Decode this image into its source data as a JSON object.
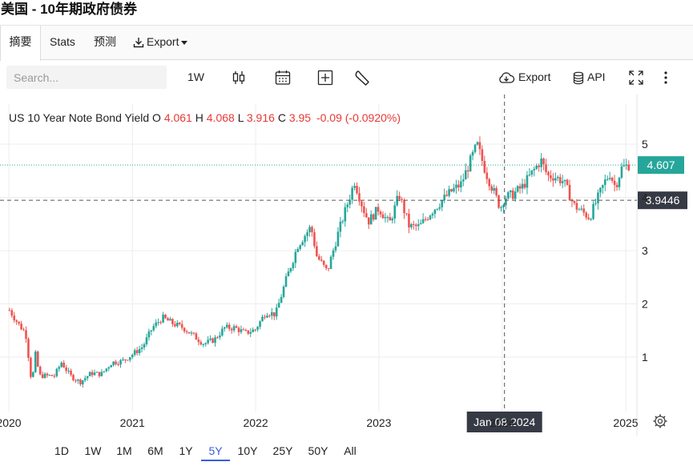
{
  "page": {
    "title": "美国 - 10年期政府债券"
  },
  "tabs": [
    {
      "label": "摘要",
      "active": true
    },
    {
      "label": "Stats"
    },
    {
      "label": "预测"
    },
    {
      "label": "Export",
      "icon": "download-icon",
      "has_dropdown": true
    }
  ],
  "toolbar": {
    "search_placeholder": "Search...",
    "interval": "1W",
    "export_label": "Export",
    "api_label": "API",
    "icons": [
      "candlestick-icon",
      "calendar-icon",
      "plus-box-icon",
      "wrench-icon",
      "cloud-download-icon",
      "database-icon",
      "fullscreen-icon",
      "more-vertical-icon"
    ]
  },
  "legend": {
    "name": "US 10 Year Note Bond Yield",
    "o_label": "O",
    "o_value": "4.061",
    "h_label": "H",
    "h_value": "4.068",
    "l_label": "L",
    "l_value": "3.916",
    "c_label": "C",
    "c_value": "3.95",
    "change": "-0.09 (-0.0920%)"
  },
  "colors": {
    "up": "#26a69a",
    "down": "#ef5350",
    "accent": "#3b5bdb",
    "last_price_bg": "#26a69a",
    "crosshair_bg": "#363a45"
  },
  "chart_data": {
    "type": "candlestick",
    "x_tick_labels": [
      "2020",
      "2021",
      "2022",
      "2023",
      "2024",
      "2025"
    ],
    "y_tick_labels": [
      "1",
      "2",
      "3",
      "4",
      "5"
    ],
    "ylim": [
      0.0,
      5.5
    ],
    "xlim": [
      "2020-01-01",
      "2025-01-10"
    ],
    "last_price": 4.607,
    "last_price_label": "4.607",
    "crosshair": {
      "date_label": "Jan 08 2024",
      "price_label": "3.9446",
      "price": 3.9446,
      "date": "2024-01-08"
    },
    "grid": true,
    "path_points": [
      [
        "2020-01-01",
        1.9
      ],
      [
        "2020-02-01",
        1.6
      ],
      [
        "2020-02-20",
        1.45
      ],
      [
        "2020-03-09",
        0.5
      ],
      [
        "2020-03-20",
        1.05
      ],
      [
        "2020-04-01",
        0.65
      ],
      [
        "2020-05-15",
        0.65
      ],
      [
        "2020-06-05",
        0.9
      ],
      [
        "2020-07-01",
        0.65
      ],
      [
        "2020-07-30",
        0.53
      ],
      [
        "2020-09-01",
        0.7
      ],
      [
        "2020-10-01",
        0.68
      ],
      [
        "2020-11-01",
        0.9
      ],
      [
        "2020-12-01",
        0.92
      ],
      [
        "2021-01-01",
        1.05
      ],
      [
        "2021-02-01",
        1.2
      ],
      [
        "2021-03-01",
        1.55
      ],
      [
        "2021-03-31",
        1.74
      ],
      [
        "2021-05-01",
        1.63
      ],
      [
        "2021-06-01",
        1.55
      ],
      [
        "2021-07-01",
        1.4
      ],
      [
        "2021-08-01",
        1.25
      ],
      [
        "2021-09-01",
        1.33
      ],
      [
        "2021-10-01",
        1.55
      ],
      [
        "2021-11-01",
        1.55
      ],
      [
        "2021-12-01",
        1.45
      ],
      [
        "2021-12-31",
        1.52
      ],
      [
        "2022-02-01",
        1.85
      ],
      [
        "2022-03-01",
        1.8
      ],
      [
        "2022-04-01",
        2.45
      ],
      [
        "2022-05-06",
        3.1
      ],
      [
        "2022-06-14",
        3.45
      ],
      [
        "2022-07-01",
        2.9
      ],
      [
        "2022-08-01",
        2.6
      ],
      [
        "2022-09-01",
        3.3
      ],
      [
        "2022-10-21",
        4.3
      ],
      [
        "2022-11-15",
        3.8
      ],
      [
        "2022-12-01",
        3.55
      ],
      [
        "2023-01-01",
        3.8
      ],
      [
        "2023-02-01",
        3.5
      ],
      [
        "2023-03-02",
        4.05
      ],
      [
        "2023-04-01",
        3.45
      ],
      [
        "2023-05-01",
        3.45
      ],
      [
        "2023-06-01",
        3.7
      ],
      [
        "2023-07-01",
        3.9
      ],
      [
        "2023-08-01",
        4.1
      ],
      [
        "2023-09-01",
        4.25
      ],
      [
        "2023-10-19",
        4.99
      ],
      [
        "2023-11-15",
        4.45
      ],
      [
        "2023-12-27",
        3.8
      ],
      [
        "2024-01-08",
        4.0
      ],
      [
        "2024-02-01",
        4.05
      ],
      [
        "2024-03-01",
        4.2
      ],
      [
        "2024-04-25",
        4.7
      ],
      [
        "2024-05-15",
        4.4
      ],
      [
        "2024-06-01",
        4.4
      ],
      [
        "2024-07-01",
        4.3
      ],
      [
        "2024-08-01",
        3.85
      ],
      [
        "2024-09-16",
        3.62
      ],
      [
        "2024-10-01",
        3.85
      ],
      [
        "2024-11-01",
        4.3
      ],
      [
        "2024-11-15",
        4.45
      ],
      [
        "2024-12-01",
        4.2
      ],
      [
        "2024-12-20",
        4.55
      ],
      [
        "2025-01-10",
        4.607
      ]
    ]
  },
  "time_ranges": [
    {
      "label": "1D"
    },
    {
      "label": "1W"
    },
    {
      "label": "1M"
    },
    {
      "label": "6M"
    },
    {
      "label": "1Y"
    },
    {
      "label": "5Y",
      "active": true
    },
    {
      "label": "10Y"
    },
    {
      "label": "25Y"
    },
    {
      "label": "50Y"
    },
    {
      "label": "All"
    }
  ]
}
